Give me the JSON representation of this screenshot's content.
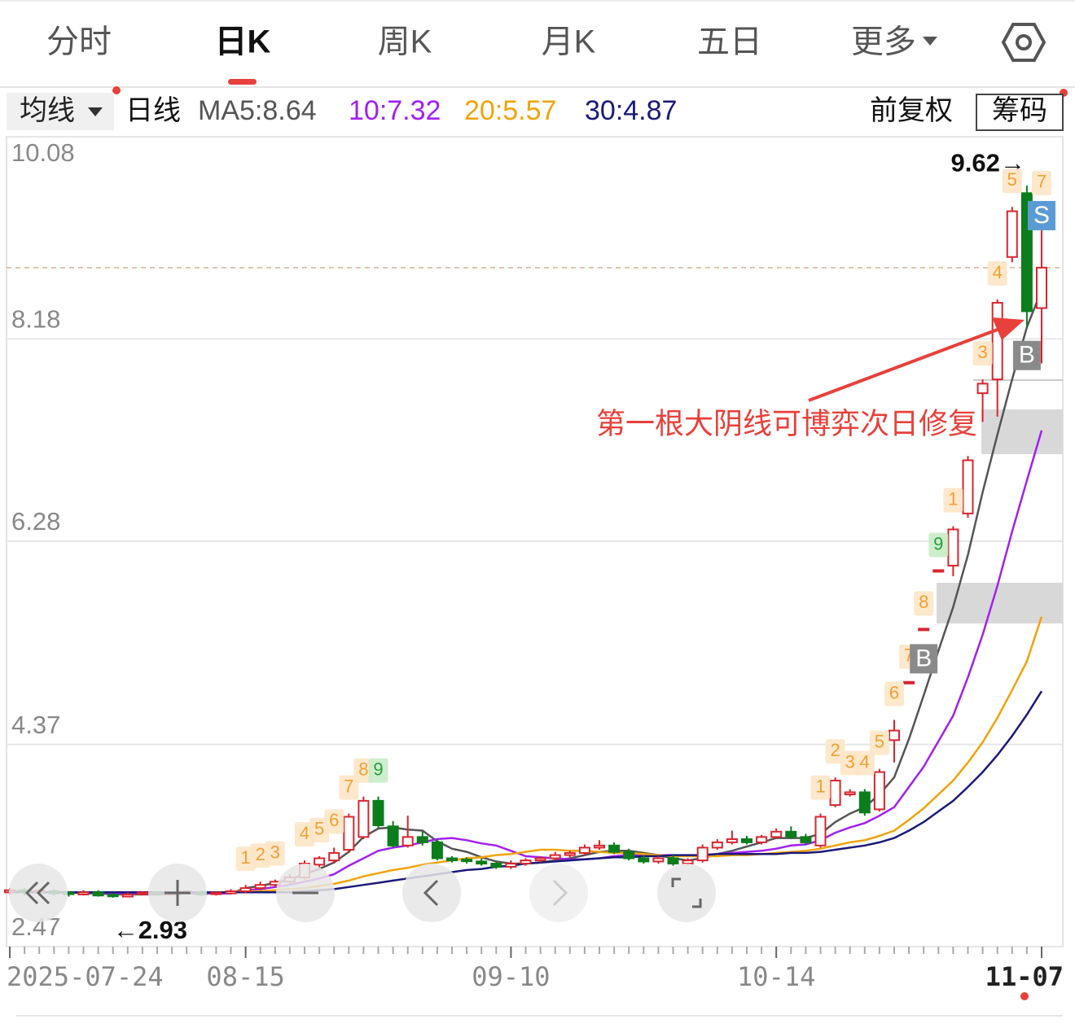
{
  "tabs": [
    "分时",
    "日K",
    "周K",
    "月K",
    "五日",
    "更多"
  ],
  "toolbar": {
    "ma_button": "均线",
    "period": "日线",
    "ma_labels": [
      "MA5:8.64",
      "10:7.32",
      "20:5.57",
      "30:4.87"
    ],
    "adjust": "前复权",
    "chips": "筹码"
  },
  "chart_data": {
    "type": "candlestick",
    "categories": [
      "2025-07-24",
      null,
      null,
      null,
      null,
      null,
      null,
      null,
      null,
      null,
      null,
      null,
      null,
      null,
      null,
      null,
      "08-15",
      null,
      null,
      null,
      null,
      null,
      null,
      null,
      null,
      null,
      null,
      null,
      null,
      null,
      null,
      null,
      null,
      null,
      "09-10",
      null,
      null,
      null,
      null,
      null,
      null,
      null,
      null,
      null,
      null,
      null,
      null,
      null,
      null,
      null,
      null,
      null,
      "10-14",
      null,
      null,
      null,
      null,
      null,
      null,
      null,
      null,
      null,
      null,
      null,
      null,
      null,
      null,
      null,
      null,
      null,
      "11-07"
    ],
    "open": [
      2.98,
      3.0,
      2.98,
      2.99,
      2.97,
      2.96,
      2.98,
      2.95,
      2.94,
      2.96,
      2.97,
      2.96,
      2.97,
      2.98,
      2.96,
      2.97,
      2.99,
      3.02,
      3.05,
      3.08,
      3.12,
      3.24,
      3.28,
      3.38,
      3.5,
      3.84,
      3.6,
      3.42,
      3.5,
      3.45,
      3.3,
      3.28,
      3.27,
      3.25,
      3.22,
      3.25,
      3.28,
      3.3,
      3.33,
      3.35,
      3.4,
      3.42,
      3.36,
      3.3,
      3.27,
      3.3,
      3.25,
      3.28,
      3.4,
      3.45,
      3.48,
      3.45,
      3.5,
      3.55,
      3.5,
      3.42,
      3.8,
      3.9,
      3.92,
      3.76,
      4.41,
      4.95,
      5.45,
      6.0,
      6.05,
      6.54,
      7.67,
      7.8,
      8.95,
      9.55,
      8.47
    ],
    "high": [
      3.02,
      3.02,
      3.01,
      3.01,
      2.99,
      3.0,
      3.0,
      2.97,
      2.98,
      2.99,
      2.99,
      2.99,
      3.0,
      3.0,
      2.99,
      3.01,
      3.05,
      3.08,
      3.1,
      3.15,
      3.28,
      3.32,
      3.4,
      3.72,
      3.88,
      3.88,
      3.65,
      3.7,
      3.55,
      3.48,
      3.32,
      3.31,
      3.3,
      3.27,
      3.28,
      3.3,
      3.32,
      3.36,
      3.37,
      3.43,
      3.47,
      3.45,
      3.39,
      3.33,
      3.32,
      3.33,
      3.3,
      3.43,
      3.48,
      3.56,
      3.51,
      3.52,
      3.58,
      3.6,
      3.53,
      3.72,
      4.06,
      3.95,
      3.95,
      4.14,
      4.6,
      4.95,
      5.45,
      6.0,
      6.42,
      7.08,
      7.8,
      8.55,
      9.42,
      9.62,
      9.4
    ],
    "low": [
      2.96,
      2.95,
      2.96,
      2.95,
      2.94,
      2.95,
      2.94,
      2.93,
      2.94,
      2.95,
      2.95,
      2.95,
      2.96,
      2.95,
      2.95,
      2.96,
      2.97,
      3.0,
      3.03,
      3.06,
      3.1,
      3.2,
      3.25,
      3.35,
      3.48,
      3.58,
      3.4,
      3.4,
      3.42,
      3.28,
      3.26,
      3.25,
      3.23,
      3.2,
      3.2,
      3.23,
      3.26,
      3.28,
      3.31,
      3.33,
      3.38,
      3.34,
      3.28,
      3.25,
      3.25,
      3.23,
      3.23,
      3.26,
      3.38,
      3.43,
      3.43,
      3.43,
      3.48,
      3.48,
      3.43,
      3.4,
      3.78,
      3.88,
      3.7,
      3.74,
      4.2,
      4.95,
      5.45,
      6.0,
      5.95,
      6.5,
      7.4,
      7.45,
      8.9,
      8.3,
      7.95
    ],
    "close": [
      3.0,
      2.98,
      2.99,
      2.97,
      2.96,
      2.98,
      2.95,
      2.94,
      2.96,
      2.97,
      2.96,
      2.97,
      2.98,
      2.96,
      2.97,
      2.99,
      3.02,
      3.05,
      3.08,
      3.12,
      3.25,
      3.3,
      3.35,
      3.69,
      3.84,
      3.61,
      3.42,
      3.5,
      3.45,
      3.3,
      3.28,
      3.27,
      3.25,
      3.22,
      3.25,
      3.28,
      3.3,
      3.33,
      3.35,
      3.4,
      3.42,
      3.36,
      3.3,
      3.27,
      3.3,
      3.25,
      3.28,
      3.4,
      3.45,
      3.48,
      3.45,
      3.5,
      3.55,
      3.5,
      3.45,
      3.69,
      4.03,
      3.92,
      3.73,
      4.11,
      4.5,
      4.95,
      5.45,
      6.0,
      6.39,
      7.04,
      7.76,
      8.52,
      9.38,
      8.44,
      8.85
    ],
    "up_color": "#d9252e",
    "down_color": "#0b7d1c",
    "series": [
      {
        "name": "MA5",
        "color": "#555555",
        "values": [
          2.99,
          2.99,
          2.98,
          2.98,
          2.98,
          2.97,
          2.97,
          2.96,
          2.96,
          2.96,
          2.96,
          2.96,
          2.97,
          2.97,
          2.97,
          2.97,
          3.02,
          3.04,
          3.07,
          3.1,
          3.15,
          3.2,
          3.26,
          3.36,
          3.5,
          3.58,
          3.59,
          3.57,
          3.56,
          3.46,
          3.39,
          3.36,
          3.31,
          3.27,
          3.25,
          3.25,
          3.26,
          3.28,
          3.3,
          3.33,
          3.36,
          3.37,
          3.37,
          3.35,
          3.33,
          3.3,
          3.28,
          3.3,
          3.34,
          3.37,
          3.41,
          3.45,
          3.49,
          3.49,
          3.49,
          3.53,
          3.64,
          3.72,
          3.78,
          3.9,
          4.06,
          4.42,
          4.83,
          5.25,
          5.66,
          6.15,
          6.74,
          7.28,
          7.8,
          8.29,
          8.64
        ]
      },
      {
        "name": "10",
        "color": "#a020f0",
        "values": [
          2.98,
          2.98,
          2.98,
          2.98,
          2.98,
          2.98,
          2.97,
          2.97,
          2.97,
          2.97,
          2.97,
          2.97,
          2.97,
          2.97,
          2.97,
          2.97,
          3.0,
          3.01,
          3.03,
          3.05,
          3.08,
          3.11,
          3.15,
          3.23,
          3.3,
          3.37,
          3.4,
          3.42,
          3.45,
          3.48,
          3.49,
          3.47,
          3.44,
          3.42,
          3.37,
          3.32,
          3.31,
          3.3,
          3.29,
          3.29,
          3.3,
          3.32,
          3.33,
          3.33,
          3.33,
          3.33,
          3.32,
          3.33,
          3.34,
          3.35,
          3.36,
          3.37,
          3.39,
          3.42,
          3.43,
          3.47,
          3.54,
          3.59,
          3.63,
          3.7,
          3.78,
          3.97,
          4.16,
          4.4,
          4.64,
          5.0,
          5.4,
          5.86,
          6.37,
          6.85,
          7.32
        ]
      },
      {
        "name": "20",
        "color": "#f0a30a",
        "values": [
          2.98,
          2.98,
          2.98,
          2.98,
          2.98,
          2.98,
          2.98,
          2.98,
          2.98,
          2.98,
          2.98,
          2.98,
          2.98,
          2.98,
          2.98,
          2.98,
          2.99,
          2.99,
          3.0,
          3.01,
          3.02,
          3.04,
          3.06,
          3.09,
          3.13,
          3.16,
          3.19,
          3.21,
          3.24,
          3.26,
          3.28,
          3.3,
          3.31,
          3.33,
          3.34,
          3.36,
          3.38,
          3.38,
          3.37,
          3.37,
          3.36,
          3.35,
          3.35,
          3.34,
          3.33,
          3.32,
          3.32,
          3.32,
          3.32,
          3.33,
          3.33,
          3.34,
          3.35,
          3.36,
          3.37,
          3.39,
          3.42,
          3.45,
          3.47,
          3.51,
          3.56,
          3.66,
          3.77,
          3.9,
          4.03,
          4.2,
          4.39,
          4.62,
          4.88,
          5.15,
          5.57
        ]
      },
      {
        "name": "30",
        "color": "#1a1a7a",
        "values": [
          2.98,
          2.98,
          2.98,
          2.98,
          2.98,
          2.98,
          2.98,
          2.98,
          2.98,
          2.98,
          2.98,
          2.98,
          2.98,
          2.98,
          2.98,
          2.98,
          2.98,
          2.98,
          2.98,
          2.98,
          2.99,
          3.0,
          3.01,
          3.03,
          3.05,
          3.07,
          3.09,
          3.11,
          3.13,
          3.15,
          3.17,
          3.19,
          3.2,
          3.22,
          3.23,
          3.25,
          3.26,
          3.27,
          3.28,
          3.29,
          3.3,
          3.31,
          3.31,
          3.32,
          3.32,
          3.33,
          3.33,
          3.33,
          3.34,
          3.34,
          3.34,
          3.34,
          3.34,
          3.35,
          3.35,
          3.36,
          3.38,
          3.4,
          3.42,
          3.45,
          3.49,
          3.56,
          3.64,
          3.74,
          3.84,
          3.97,
          4.11,
          4.27,
          4.45,
          4.65,
          4.87
        ]
      }
    ],
    "ylim": [
      2.47,
      10.08
    ],
    "yticks": [
      10.08,
      8.18,
      6.28,
      4.37,
      2.47
    ],
    "grid": true,
    "high_label": "9.62→",
    "low_label": "←2.93",
    "annotation": "第一根大阴线可博弈次日修复",
    "markers": [
      {
        "index": 16,
        "label": "1",
        "color": "#f0a030"
      },
      {
        "index": 17,
        "label": "2",
        "color": "#f0a030"
      },
      {
        "index": 18,
        "label": "3",
        "color": "#f0a030"
      },
      {
        "index": 20,
        "label": "4",
        "color": "#f0a030"
      },
      {
        "index": 21,
        "label": "5",
        "color": "#f0a030"
      },
      {
        "index": 22,
        "label": "6",
        "color": "#f0a030"
      },
      {
        "index": 23,
        "label": "7",
        "color": "#f0a030"
      },
      {
        "index": 24,
        "label": "8",
        "color": "#f0a030"
      },
      {
        "index": 25,
        "label": "9",
        "color": "#2a9d3a"
      },
      {
        "index": 55,
        "label": "1",
        "color": "#f0a030"
      },
      {
        "index": 56,
        "label": "2",
        "color": "#f0a030"
      },
      {
        "index": 57,
        "label": "3",
        "color": "#f0a030"
      },
      {
        "index": 58,
        "label": "4",
        "color": "#f0a030"
      },
      {
        "index": 59,
        "label": "5",
        "color": "#f0a030"
      },
      {
        "index": 60,
        "label": "6",
        "color": "#f0a030"
      },
      {
        "index": 61,
        "label": "7",
        "color": "#f0a030"
      },
      {
        "index": 62,
        "label": "8",
        "color": "#f0a030"
      },
      {
        "index": 63,
        "label": "9",
        "color": "#2a9d3a"
      },
      {
        "index": 64,
        "label": "1",
        "color": "#f0a030"
      },
      {
        "index": 66,
        "label": "3",
        "color": "#f0a030"
      },
      {
        "index": 67,
        "label": "4",
        "color": "#f0a030"
      },
      {
        "index": 68,
        "label": "5",
        "color": "#f0a030"
      },
      {
        "index": 70,
        "label": "7",
        "color": "#f0a030"
      }
    ],
    "signals": [
      {
        "index": 62,
        "label": "B",
        "color": "#8a8a8a"
      },
      {
        "index": 69,
        "label": "B",
        "color": "#8a8a8a"
      },
      {
        "index": 70,
        "label": "S",
        "color": "#5b9bd5"
      }
    ]
  }
}
